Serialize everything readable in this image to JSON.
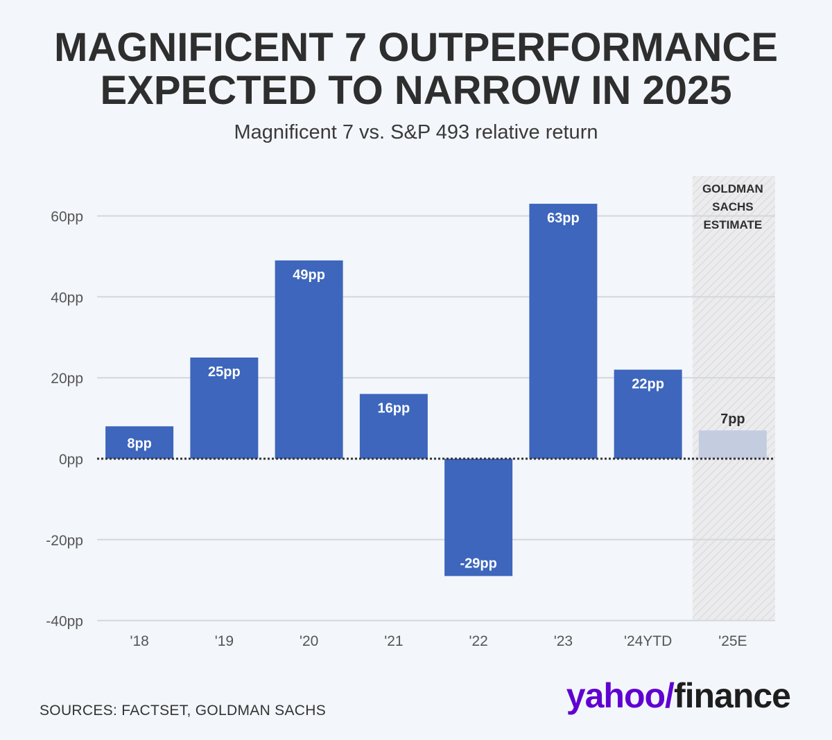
{
  "chart_data": {
    "type": "bar",
    "title": "MAGNIFICENT 7 OUTPERFORMANCE EXPECTED TO NARROW IN 2025",
    "title_lines": [
      "MAGNIFICENT 7 OUTPERFORMANCE",
      "EXPECTED TO NARROW IN 2025"
    ],
    "subtitle": "Magnificent 7 vs. S&P 493 relative return",
    "categories": [
      "'18",
      "'19",
      "'20",
      "'21",
      "'22",
      "'23",
      "'24YTD",
      "'25E"
    ],
    "values": [
      8,
      25,
      49,
      16,
      -29,
      63,
      22,
      7
    ],
    "labels": [
      "8pp",
      "25pp",
      "49pp",
      "16pp",
      "-29pp",
      "63pp",
      "22pp",
      "7pp"
    ],
    "estimate": [
      false,
      false,
      false,
      false,
      false,
      false,
      false,
      true
    ],
    "ylim": [
      -40,
      67
    ],
    "yticks": [
      -40,
      -20,
      0,
      20,
      40,
      60
    ],
    "ytick_labels": [
      "-40pp",
      "-20pp",
      "0pp",
      "20pp",
      "40pp",
      "60pp"
    ],
    "grid": true,
    "annotation": {
      "text_lines": [
        "GOLDMAN",
        "SACHS",
        "ESTIMATE"
      ],
      "category": "'25E"
    },
    "colors": {
      "bar": "#3d66bc",
      "estimate_bar": "#c4cde0",
      "grid": "#d4d6da",
      "zero_line": "#333333"
    }
  },
  "footer": {
    "source": "SOURCES: FACTSET, GOLDMAN SACHS",
    "logo_yahoo": "yahoo",
    "logo_mark": "/",
    "logo_finance": "finance"
  }
}
